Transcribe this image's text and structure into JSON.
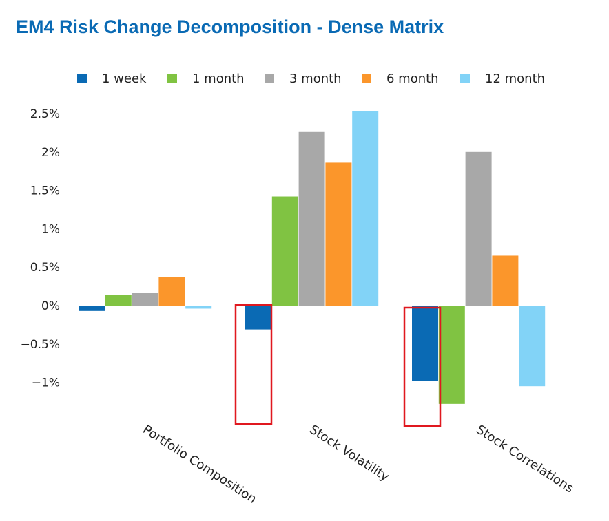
{
  "title": "EM4 Risk Change Decomposition - Dense Matrix",
  "chart_data": {
    "type": "bar",
    "categories": [
      "Portfolio Composition",
      "Stock Volatility",
      "Stock Correlations"
    ],
    "series": [
      {
        "name": "1 week",
        "color": "#0a6ab4",
        "values": [
          -0.07,
          -0.31,
          -0.98
        ]
      },
      {
        "name": "1 month",
        "color": "#80c342",
        "values": [
          0.14,
          1.42,
          -1.28
        ]
      },
      {
        "name": "3 month",
        "color": "#a8a8a8",
        "values": [
          0.17,
          2.26,
          2.0
        ]
      },
      {
        "name": "6 month",
        "color": "#fb962b",
        "values": [
          0.37,
          1.86,
          0.65
        ]
      },
      {
        "name": "12 month",
        "color": "#82d3f7",
        "values": [
          -0.04,
          2.53,
          -1.05
        ]
      }
    ],
    "ylim": [
      -1.5,
      2.5
    ],
    "yticks": [
      {
        "value": 2.5,
        "label": "2.5%"
      },
      {
        "value": 2,
        "label": "2%"
      },
      {
        "value": 1.5,
        "label": "1.5%"
      },
      {
        "value": 1,
        "label": "1%"
      },
      {
        "value": 0.5,
        "label": "0.5%"
      },
      {
        "value": 0,
        "label": "0%"
      },
      {
        "value": -0.5,
        "label": "−0.5%"
      },
      {
        "value": -1,
        "label": "−1%"
      }
    ],
    "legend_position": "top",
    "grid": false,
    "annotations": [
      {
        "type": "highlight-box",
        "color": "#e0181f",
        "category": "Stock Volatility",
        "series": "1 week"
      },
      {
        "type": "highlight-box",
        "color": "#e0181f",
        "category": "Stock Correlations",
        "series": "1 week"
      }
    ]
  }
}
